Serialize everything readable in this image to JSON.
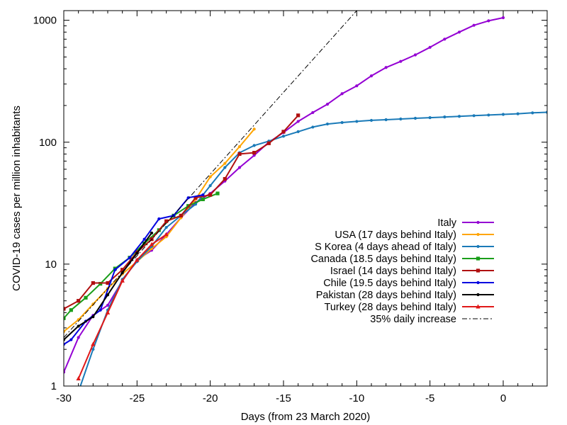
{
  "chart_data": {
    "type": "line",
    "title": "",
    "xlabel": "Days (from 23 March 2020)",
    "ylabel": "COVID-19 cases per million inhabitants",
    "xlim": [
      -30,
      3
    ],
    "ylim": [
      1,
      1200
    ],
    "y_scale": "log",
    "grid": false,
    "legend_position": "right",
    "x_ticks": [
      -30,
      -25,
      -20,
      -15,
      -10,
      -5,
      0
    ],
    "x_tick_labels": [
      "-30",
      "-25",
      "-20",
      "-15",
      "-10",
      "-5",
      "0"
    ],
    "y_ticks": [
      1,
      10,
      100,
      1000
    ],
    "y_tick_labels": [
      "1",
      "10",
      "100",
      "1000"
    ],
    "series": [
      {
        "name": "Italy",
        "color": "#9400d3",
        "marker": "dot",
        "x": [
          -30,
          -29,
          -28,
          -27,
          -26,
          -25,
          -24,
          -23,
          -22,
          -21,
          -20,
          -19,
          -18,
          -17,
          -16,
          -15,
          -14,
          -13,
          -12,
          -11,
          -10,
          -9,
          -8,
          -7,
          -6,
          -5,
          -4,
          -3,
          -2,
          -1,
          0
        ],
        "y": [
          1.3,
          2.5,
          3.8,
          4.6,
          7.3,
          10.8,
          13,
          17.5,
          24,
          32,
          38,
          48,
          62,
          78,
          100,
          120,
          148,
          175,
          205,
          250,
          290,
          350,
          410,
          460,
          520,
          600,
          700,
          800,
          910,
          990,
          1050
        ]
      },
      {
        "name": "USA (17 days behind Italy)",
        "color": "#ffa500",
        "marker": "dot",
        "x": [
          -30,
          -29,
          -28,
          -27,
          -26,
          -25,
          -24,
          -23,
          -22,
          -21,
          -20,
          -19,
          -18,
          -17
        ],
        "y": [
          2.8,
          3.5,
          4.7,
          6.3,
          8.3,
          10.5,
          13.4,
          16.8,
          24,
          34,
          52,
          67,
          92,
          128
        ]
      },
      {
        "name": "S Korea (4 days ahead of Italy)",
        "color": "#1a7ab8",
        "marker": "dot",
        "x": [
          -30,
          -29,
          -28,
          -27,
          -26,
          -25,
          -24,
          -23,
          -22,
          -21,
          -20,
          -19,
          -18,
          -17,
          -16,
          -15,
          -14,
          -13,
          -12,
          -11,
          -10,
          -9,
          -8,
          -7,
          -6,
          -5,
          -4,
          -3,
          -2,
          -1,
          0,
          1,
          2,
          3
        ],
        "y": [
          0.6,
          0.9,
          2,
          4.2,
          7.5,
          10.5,
          14,
          20,
          25,
          31,
          44,
          62,
          82,
          94,
          102,
          112,
          122,
          133,
          141,
          145,
          148,
          151,
          153,
          155,
          157,
          159,
          161,
          163,
          165,
          167,
          169,
          171,
          174,
          176
        ]
      },
      {
        "name": "Canada (18.5 days behind Italy)",
        "color": "#1a9e1a",
        "marker": "square",
        "x": [
          -30,
          -29.5,
          -28.5,
          -27.5,
          -26.5,
          -25.5,
          -24.5,
          -23.5,
          -22.5,
          -21.5,
          -20.5,
          -19.5
        ],
        "y": [
          3.6,
          4.2,
          5.3,
          6.9,
          9.2,
          11.3,
          14.8,
          19,
          25,
          30,
          34,
          38
        ]
      },
      {
        "name": "Israel (14 days behind Italy)",
        "color": "#b01010",
        "marker": "square",
        "x": [
          -30,
          -29,
          -28,
          -27,
          -26,
          -25,
          -24,
          -23,
          -22,
          -21,
          -20,
          -19,
          -18,
          -17,
          -16,
          -15,
          -14
        ],
        "y": [
          4.3,
          5,
          7,
          7,
          9,
          12.5,
          16,
          22.5,
          25,
          35,
          37,
          50,
          80,
          82,
          98,
          122,
          166
        ]
      },
      {
        "name": "Chile (19.5 days behind Italy)",
        "color": "#0000e0",
        "marker": "dot",
        "x": [
          -30,
          -29.5,
          -28.5,
          -27.5,
          -26.5,
          -25.5,
          -24.5,
          -23.5,
          -22.5,
          -21.5,
          -20.5
        ],
        "y": [
          2.2,
          2.4,
          3.4,
          4.2,
          9,
          11.3,
          16,
          23.5,
          25,
          35,
          37
        ]
      },
      {
        "name": "Pakistan (28 days behind Italy)",
        "color": "#000000",
        "marker": "dot",
        "x": [
          -30,
          -29,
          -28,
          -27,
          -26,
          -25,
          -24
        ],
        "y": [
          2.4,
          3.1,
          3.7,
          5.6,
          8.5,
          12.3,
          18
        ]
      },
      {
        "name": "Turkey (28 days behind Italy)",
        "color": "#e01818",
        "marker": "triangle",
        "x": [
          -29,
          -28,
          -27,
          -26,
          -25,
          -24,
          -23
        ],
        "y": [
          1.15,
          2.2,
          4,
          7.3,
          10.8,
          14.5,
          17.5
        ]
      },
      {
        "name": "35% daily increase",
        "color": "#000000",
        "marker": "none",
        "dashed": true,
        "x": [
          -30,
          -10
        ],
        "y": [
          2.5,
          1200
        ]
      }
    ]
  }
}
